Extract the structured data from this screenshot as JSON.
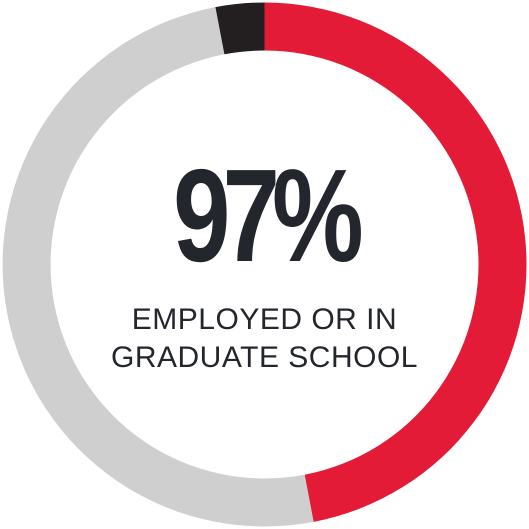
{
  "chart_data": {
    "type": "pie",
    "title": "97%",
    "caption_line1": "EMPLOYED OR IN",
    "caption_line2": "GRADUATE SCHOOL",
    "segments": [
      {
        "value": 47,
        "color": "#e31b37"
      },
      {
        "value": 50,
        "color": "#cfcfd0"
      },
      {
        "value": 3,
        "color": "#231f20"
      }
    ]
  }
}
